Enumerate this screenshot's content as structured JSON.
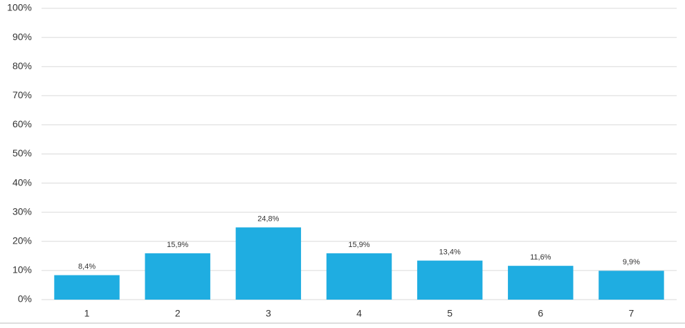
{
  "chart_data": {
    "type": "bar",
    "categories": [
      "1",
      "2",
      "3",
      "4",
      "5",
      "6",
      "7"
    ],
    "values": [
      8.4,
      15.9,
      24.8,
      15.9,
      13.4,
      11.6,
      9.9
    ],
    "value_labels": [
      "8,4%",
      "15,9%",
      "24,8%",
      "15,9%",
      "13,4%",
      "11,6%",
      "9,9%"
    ],
    "color": "#1fade1",
    "ylim": [
      0,
      100
    ],
    "yticks": [
      {
        "value": 0,
        "label": "0%"
      },
      {
        "value": 10,
        "label": "10%"
      },
      {
        "value": 20,
        "label": "20%"
      },
      {
        "value": 30,
        "label": "30%"
      },
      {
        "value": 40,
        "label": "40%"
      },
      {
        "value": 50,
        "label": "50%"
      },
      {
        "value": 60,
        "label": "60%"
      },
      {
        "value": 70,
        "label": "70%"
      },
      {
        "value": 80,
        "label": "80%"
      },
      {
        "value": 90,
        "label": "90%"
      },
      {
        "value": 100,
        "label": "100%"
      }
    ],
    "grid": true
  }
}
